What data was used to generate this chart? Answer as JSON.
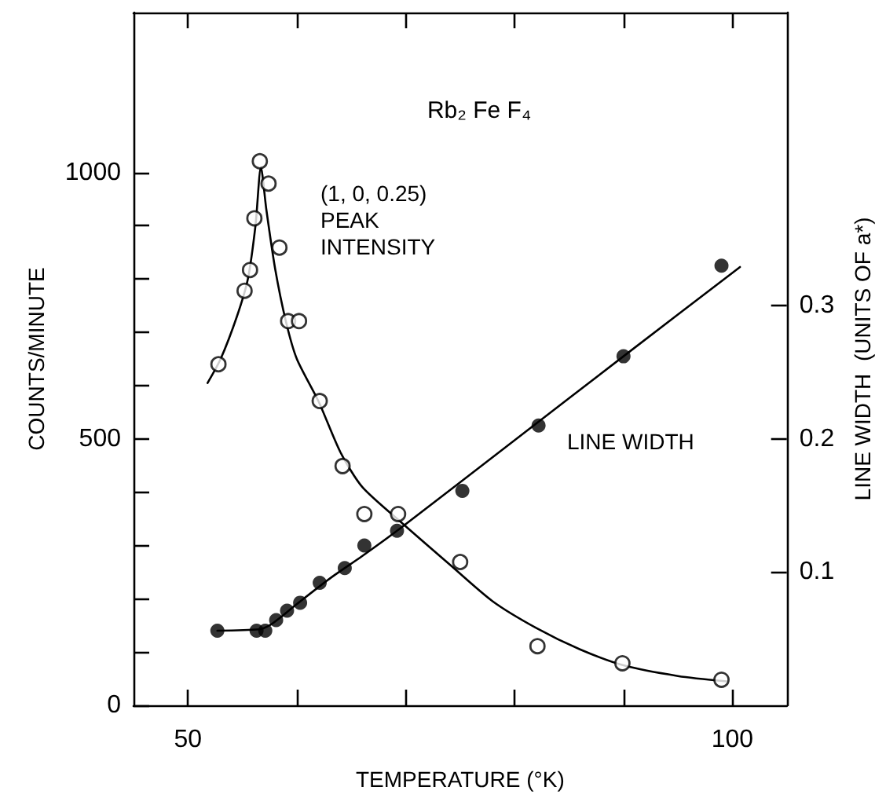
{
  "chart_data": {
    "type": "scatter",
    "title": "Rb₂ Fe F₄",
    "xlabel": "TEMPERATURE (°K)",
    "ylabel": "COUNTS/MINUTE",
    "y2label": "LINE WIDTH  (UNITS OF a*)",
    "annotations": [
      "(1, 0, 0.25)\nPEAK\nINTENSITY",
      "LINE WIDTH"
    ],
    "xlim": [
      45,
      105
    ],
    "xticks": [
      50,
      {
        "value": 60,
        "label": null
      },
      {
        "value": 70,
        "label": null
      },
      {
        "value": 80,
        "label": null
      },
      {
        "value": 90,
        "label": null
      },
      100
    ],
    "ylim": [
      0,
      1300
    ],
    "yticks": [
      0,
      {
        "value": 100,
        "label": null
      },
      {
        "value": 200,
        "label": null
      },
      {
        "value": 300,
        "label": null
      },
      {
        "value": 400,
        "label": null
      },
      500,
      {
        "value": 600,
        "label": null
      },
      {
        "value": 700,
        "label": null
      },
      {
        "value": 800,
        "label": null
      },
      {
        "value": 900,
        "label": null
      },
      1000
    ],
    "y2lim": [
      0,
      0.52
    ],
    "y2ticks": [
      0.1,
      0.2,
      0.3
    ],
    "grid": false,
    "series": [
      {
        "color": "#000000",
        "marker": "circle",
        "x": [
          52.8,
          55.2,
          55.7,
          56.1,
          56.6,
          57.4,
          58.4,
          59.2,
          60.2,
          62.1,
          64.2,
          66.2,
          69.3,
          75.0,
          82.1,
          89.9,
          99.0
        ],
        "values": [
          640,
          778,
          817,
          914,
          1021,
          979,
          859,
          721,
          721,
          571,
          449,
          359,
          359,
          269,
          111,
          79,
          48
        ]
      },
      {
        "type": "scatter",
        "color": "#000000",
        "marker": "circle",
        "axis": "y2",
        "x": [
          52.7,
          56.3,
          57.1,
          58.1,
          59.1,
          60.3,
          62.1,
          64.4,
          66.2,
          69.2,
          75.2,
          82.2,
          90.0,
          99.0
        ],
        "values": [
          0.056,
          0.056,
          0.056,
          0.064,
          0.071,
          0.077,
          0.092,
          0.103,
          0.12,
          0.131,
          0.161,
          0.21,
          0.262,
          0.33
        ]
      },
      {
        "type": "line",
        "color": "#000000",
        "marker": "none",
        "line_style": "solid",
        "x": [
          51.8,
          53,
          54.5,
          55.5,
          56.2,
          56.7,
          57.2,
          58,
          59,
          60,
          62,
          64,
          66,
          69.5,
          74,
          78,
          82,
          86,
          90,
          95,
          99.5
        ],
        "values": [
          605,
          650,
          730,
          800,
          900,
          1010,
          930,
          820,
          720,
          650,
          570,
          475,
          410,
          345,
          265,
          195,
          145,
          105,
          75,
          55,
          45
        ]
      },
      {
        "type": "line",
        "color": "#000000",
        "marker": "none",
        "line_style": "solid",
        "axis": "y2",
        "x": [
          52.7,
          56.5,
          57.5,
          58.5,
          60,
          63,
          66,
          69.2,
          80,
          90,
          100.7
        ],
        "values": [
          0.056,
          0.057,
          0.06,
          0.066,
          0.076,
          0.095,
          0.112,
          0.131,
          0.199,
          0.262,
          0.329
        ]
      }
    ]
  }
}
